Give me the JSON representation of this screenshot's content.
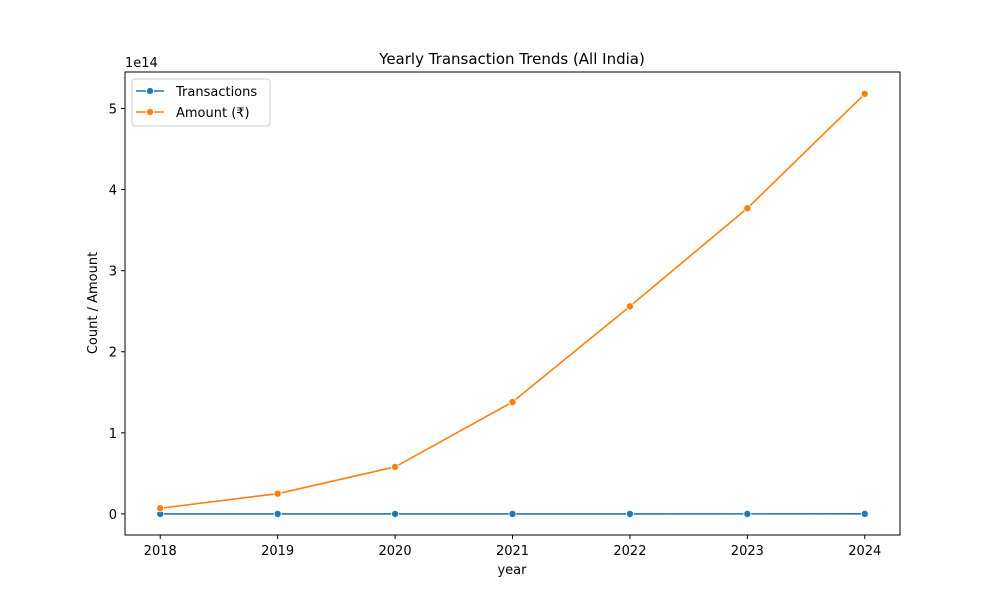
{
  "chart_data": {
    "type": "line",
    "title": "Yearly Transaction Trends (All India)",
    "xlabel": "year",
    "ylabel": "Count / Amount",
    "y_offset_label": "1e14",
    "y_scale": 100000000000000.0,
    "x": [
      2018,
      2019,
      2020,
      2021,
      2022,
      2023,
      2024
    ],
    "xlim": [
      2017.7,
      2024.3
    ],
    "ylim": [
      -26000000000000.0,
      545000000000000.0
    ],
    "y_ticks": [
      0,
      100000000000000.0,
      200000000000000.0,
      300000000000000.0,
      400000000000000.0,
      500000000000000.0
    ],
    "y_tick_labels": [
      "0",
      "1",
      "2",
      "3",
      "4",
      "5"
    ],
    "grid": false,
    "legend_position": "top-left",
    "series": [
      {
        "name": "Transactions",
        "color": "#1f77b4",
        "values": [
          1000000000.0,
          4000000000.0,
          8000000000.0,
          17000000000.0,
          33000000000.0,
          48000000000.0,
          90000000000.0
        ]
      },
      {
        "name": "Amount (₹)",
        "color": "#ff7f0e",
        "values": [
          7000000000000.0,
          25000000000000.0,
          58000000000000.0,
          138000000000000.0,
          256000000000000.0,
          377000000000000.0,
          518000000000000.0
        ]
      }
    ]
  }
}
